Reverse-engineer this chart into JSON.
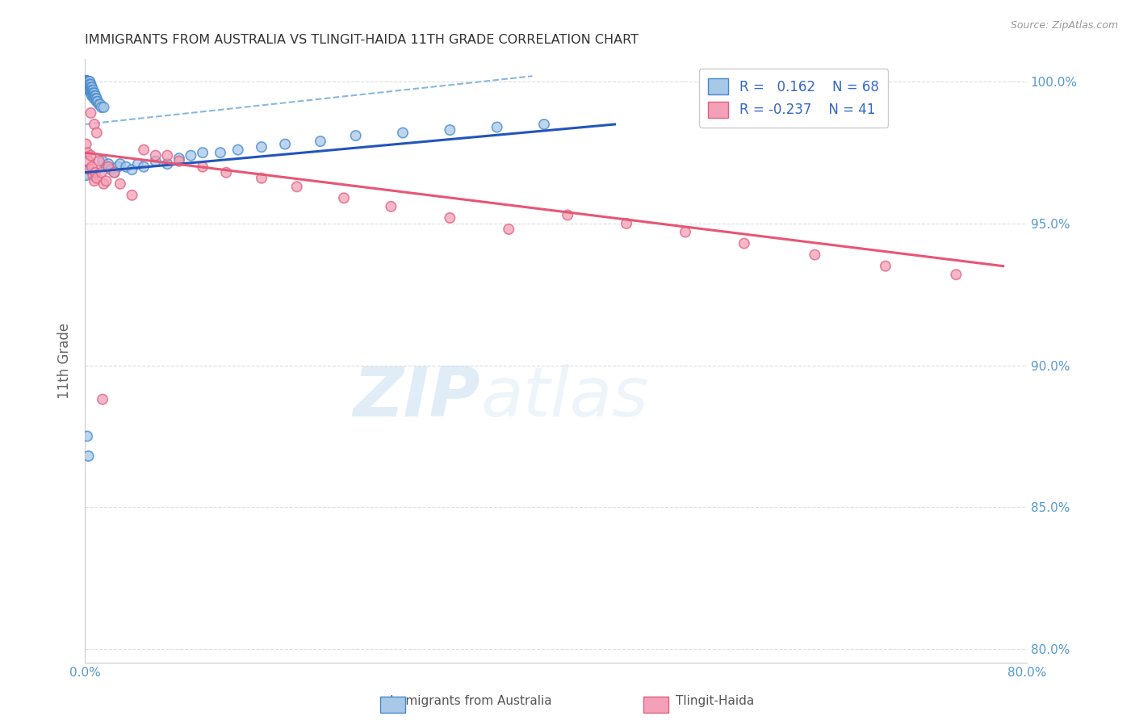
{
  "title": "IMMIGRANTS FROM AUSTRALIA VS TLINGIT-HAIDA 11TH GRADE CORRELATION CHART",
  "source": "Source: ZipAtlas.com",
  "ylabel": "11th Grade",
  "xlim": [
    0,
    0.8
  ],
  "ylim": [
    0.795,
    1.008
  ],
  "xticks": [
    0.0,
    0.1,
    0.2,
    0.3,
    0.4,
    0.5,
    0.6,
    0.7,
    0.8
  ],
  "yticks": [
    0.8,
    0.85,
    0.9,
    0.95,
    1.0
  ],
  "yticklabels": [
    "80.0%",
    "85.0%",
    "90.0%",
    "95.0%",
    "100.0%"
  ],
  "blue_color": "#a8c8e8",
  "pink_color": "#f4a0b8",
  "blue_edge_color": "#4488cc",
  "pink_edge_color": "#e06080",
  "blue_line_color": "#2255bb",
  "pink_line_color": "#e85575",
  "dashed_line_color": "#88b8e0",
  "grid_color": "#dddddd",
  "axis_color": "#5599cc",
  "watermark_color": "#dce8f5",
  "blue_trend": [
    0.0,
    0.45,
    0.968,
    0.985
  ],
  "pink_trend": [
    0.0,
    0.78,
    0.975,
    0.935
  ],
  "dashed_trend": [
    0.0,
    0.38,
    0.985,
    1.002
  ],
  "blue_x": [
    0.001,
    0.001,
    0.001,
    0.002,
    0.002,
    0.002,
    0.002,
    0.003,
    0.003,
    0.003,
    0.003,
    0.004,
    0.004,
    0.004,
    0.004,
    0.005,
    0.005,
    0.005,
    0.005,
    0.006,
    0.006,
    0.006,
    0.006,
    0.007,
    0.007,
    0.007,
    0.008,
    0.008,
    0.008,
    0.009,
    0.009,
    0.01,
    0.01,
    0.011,
    0.012,
    0.013,
    0.014,
    0.015,
    0.016,
    0.018,
    0.02,
    0.022,
    0.025,
    0.028,
    0.03,
    0.035,
    0.04,
    0.045,
    0.05,
    0.06,
    0.07,
    0.08,
    0.09,
    0.1,
    0.115,
    0.13,
    0.15,
    0.17,
    0.2,
    0.23,
    0.27,
    0.31,
    0.35,
    0.39,
    0.0,
    0.001,
    0.002,
    0.003
  ],
  "blue_y": [
    1.0,
    1.0,
    1.0,
    1.0,
    1.0,
    0.999,
    0.998,
    1.0,
    1.0,
    0.999,
    0.998,
    1.0,
    0.999,
    0.998,
    0.997,
    0.999,
    0.998,
    0.997,
    0.996,
    0.998,
    0.997,
    0.996,
    0.995,
    0.997,
    0.996,
    0.995,
    0.996,
    0.995,
    0.994,
    0.995,
    0.994,
    0.994,
    0.993,
    0.993,
    0.992,
    0.992,
    0.991,
    0.972,
    0.991,
    0.97,
    0.971,
    0.969,
    0.968,
    0.97,
    0.971,
    0.97,
    0.969,
    0.971,
    0.97,
    0.972,
    0.971,
    0.973,
    0.974,
    0.975,
    0.975,
    0.976,
    0.977,
    0.978,
    0.979,
    0.981,
    0.982,
    0.983,
    0.984,
    0.985,
    0.968,
    0.967,
    0.875,
    0.868
  ],
  "blue_sizes": [
    120,
    120,
    120,
    90,
    90,
    90,
    90,
    90,
    90,
    90,
    90,
    90,
    90,
    90,
    90,
    80,
    80,
    80,
    80,
    80,
    80,
    80,
    80,
    80,
    80,
    80,
    80,
    80,
    80,
    80,
    80,
    80,
    80,
    80,
    80,
    80,
    80,
    80,
    80,
    80,
    80,
    80,
    80,
    80,
    80,
    80,
    80,
    80,
    80,
    80,
    80,
    80,
    80,
    80,
    80,
    80,
    80,
    80,
    80,
    80,
    80,
    80,
    80,
    80,
    150,
    80,
    80,
    80
  ],
  "pink_x": [
    0.001,
    0.002,
    0.003,
    0.004,
    0.005,
    0.006,
    0.007,
    0.008,
    0.009,
    0.01,
    0.012,
    0.014,
    0.016,
    0.018,
    0.02,
    0.025,
    0.03,
    0.04,
    0.05,
    0.06,
    0.07,
    0.08,
    0.1,
    0.12,
    0.15,
    0.18,
    0.22,
    0.26,
    0.31,
    0.36,
    0.41,
    0.46,
    0.51,
    0.56,
    0.62,
    0.68,
    0.74,
    0.005,
    0.008,
    0.01,
    0.015
  ],
  "pink_y": [
    0.978,
    0.975,
    0.972,
    0.969,
    0.974,
    0.97,
    0.967,
    0.965,
    0.968,
    0.966,
    0.972,
    0.968,
    0.964,
    0.965,
    0.97,
    0.968,
    0.964,
    0.96,
    0.976,
    0.974,
    0.974,
    0.972,
    0.97,
    0.968,
    0.966,
    0.963,
    0.959,
    0.956,
    0.952,
    0.948,
    0.953,
    0.95,
    0.947,
    0.943,
    0.939,
    0.935,
    0.932,
    0.989,
    0.985,
    0.982,
    0.888
  ],
  "pink_sizes": [
    80,
    80,
    80,
    80,
    80,
    80,
    80,
    80,
    80,
    80,
    80,
    80,
    80,
    80,
    80,
    80,
    80,
    80,
    80,
    80,
    80,
    80,
    80,
    80,
    80,
    80,
    80,
    80,
    80,
    80,
    80,
    80,
    80,
    80,
    80,
    80,
    80,
    80,
    80,
    80,
    80
  ]
}
